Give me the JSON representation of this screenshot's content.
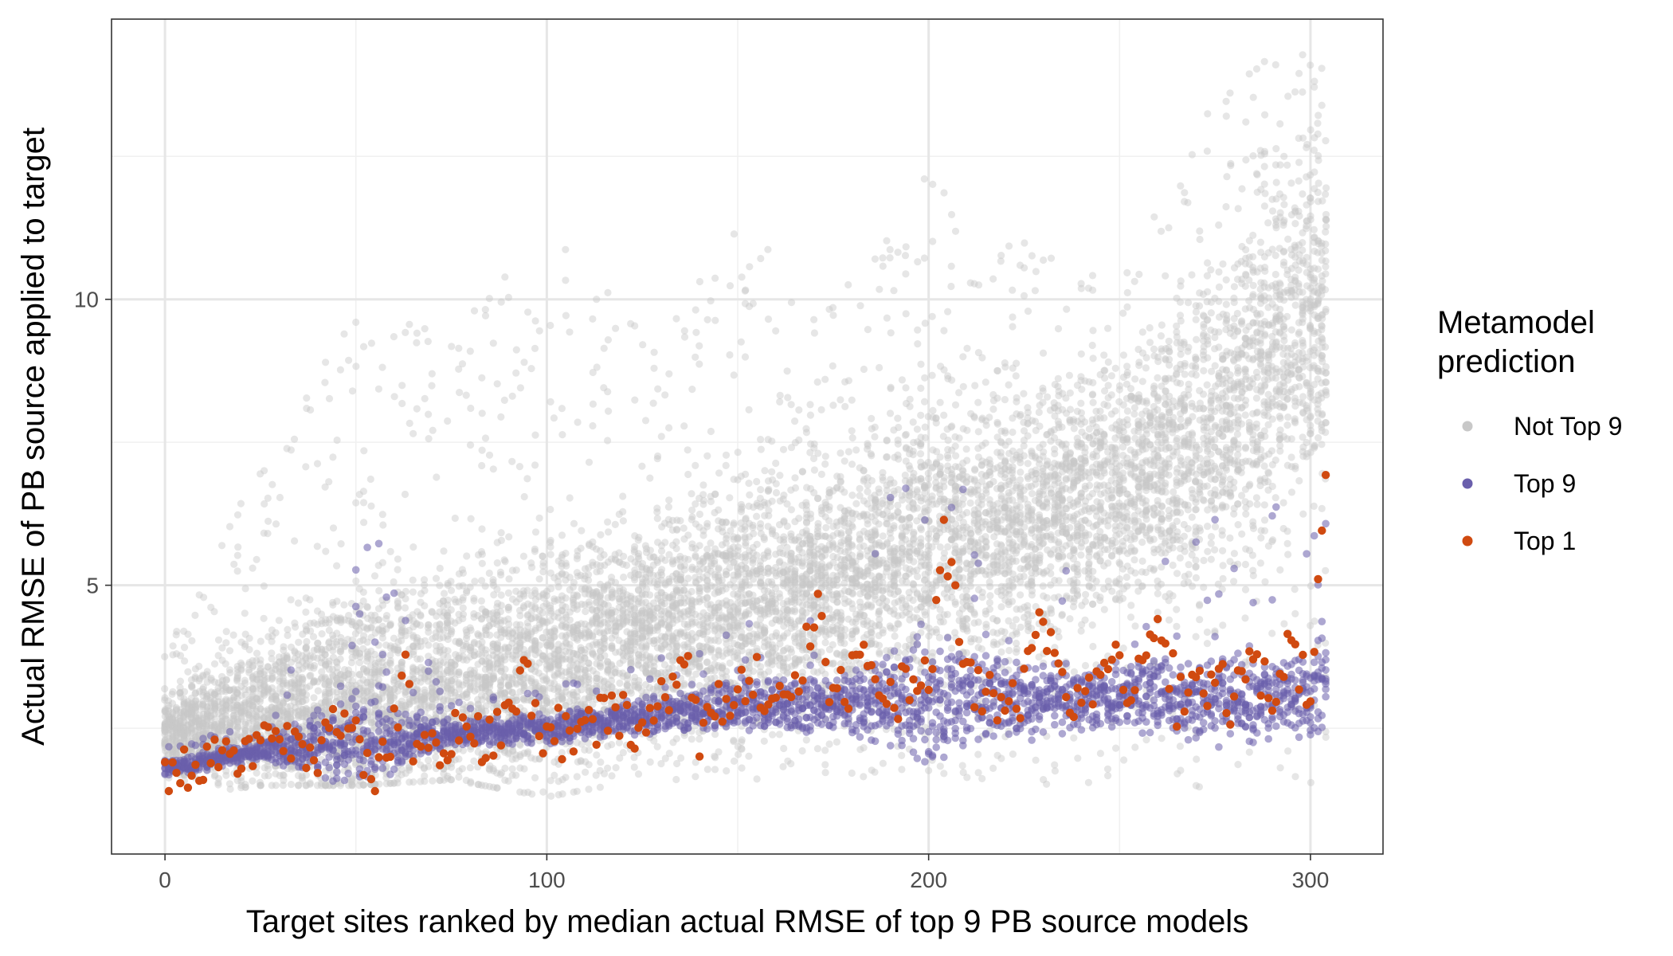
{
  "chart_data": {
    "type": "scatter",
    "title": "",
    "xlabel": "Target sites ranked by median actual RMSE of top 9 PB source models",
    "ylabel": "Actual RMSE of PB source applied to target",
    "xlim": [
      -14,
      319
    ],
    "ylim": [
      0.3,
      14.9
    ],
    "x_ticks": [
      0,
      100,
      200,
      300
    ],
    "x_tick_labels": [
      "0",
      "100",
      "200",
      "300"
    ],
    "y_ticks": [
      5,
      10
    ],
    "y_tick_labels": [
      "5",
      "10"
    ],
    "grid": true,
    "legend_position": "right",
    "legend": {
      "title_lines": [
        "Metamodel",
        "prediction"
      ],
      "entries": [
        {
          "label": "Not Top 9",
          "color": "#c8c8c8"
        },
        {
          "label": "Top 9",
          "color": "#6a5fac"
        },
        {
          "label": "Top 1",
          "color": "#d04a10"
        }
      ]
    },
    "n_sites": 305,
    "series": [
      {
        "name": "Not Top 9",
        "color": "#c8c8c8",
        "summary_by_site": {
          "x": [
            0,
            25,
            50,
            75,
            100,
            125,
            150,
            175,
            200,
            225,
            250,
            275,
            300,
            304
          ],
          "median_y": [
            2.4,
            2.8,
            3.0,
            3.3,
            3.7,
            4.1,
            4.6,
            5.1,
            5.8,
            6.1,
            6.7,
            7.7,
            9.8,
            10.0
          ],
          "max_y": [
            3.8,
            7.1,
            9.8,
            9.6,
            11.2,
            9.6,
            11.3,
            10.0,
            12.4,
            11.0,
            10.2,
            14.1,
            14.3,
            14.0
          ],
          "min_y": [
            1.3,
            1.5,
            1.5,
            1.6,
            1.3,
            1.6,
            1.6,
            1.6,
            1.6,
            1.5,
            1.4,
            1.4,
            1.4,
            1.6
          ]
        }
      },
      {
        "name": "Top 9",
        "color": "#6a5fac",
        "summary_by_site": {
          "x": [
            0,
            25,
            50,
            75,
            100,
            125,
            150,
            175,
            200,
            225,
            250,
            275,
            300,
            304
          ],
          "median_y": [
            1.8,
            2.1,
            2.3,
            2.4,
            2.5,
            2.7,
            2.9,
            2.9,
            3.0,
            3.0,
            3.1,
            3.0,
            3.1,
            3.3
          ],
          "max_y": [
            2.2,
            2.6,
            6.7,
            3.0,
            3.2,
            3.6,
            4.4,
            4.8,
            8.2,
            5.9,
            5.5,
            6.4,
            6.5,
            6.8
          ],
          "min_y": [
            1.3,
            1.5,
            1.6,
            1.6,
            1.6,
            1.7,
            1.7,
            1.8,
            1.7,
            1.7,
            1.7,
            1.6,
            1.6,
            1.6
          ]
        }
      },
      {
        "name": "Top 1",
        "color": "#d04a10",
        "x": [
          0,
          5,
          10,
          15,
          20,
          25,
          30,
          35,
          40,
          44,
          50,
          55,
          60,
          63,
          65,
          70,
          72,
          75,
          80,
          85,
          90,
          95,
          99,
          100,
          105,
          110,
          115,
          120,
          125,
          130,
          136,
          140,
          145,
          150,
          155,
          160,
          165,
          171,
          175,
          180,
          185,
          190,
          195,
          200,
          204,
          210,
          215,
          220,
          225,
          230,
          235,
          240,
          245,
          250,
          255,
          260,
          265,
          270,
          275,
          280,
          285,
          290,
          295,
          300,
          303
        ],
        "y": [
          1.6,
          1.8,
          1.8,
          2.1,
          2.0,
          2.2,
          2.1,
          2.2,
          2.0,
          2.8,
          2.3,
          1.5,
          2.5,
          3.5,
          2.3,
          2.4,
          1.8,
          2.4,
          2.3,
          2.4,
          2.5,
          3.6,
          1.6,
          2.7,
          2.3,
          2.4,
          2.6,
          2.6,
          2.5,
          2.9,
          4.1,
          2.5,
          2.9,
          3.0,
          3.3,
          3.2,
          3.0,
          4.7,
          2.9,
          3.4,
          3.6,
          3.1,
          3.3,
          3.4,
          5.9,
          3.5,
          3.1,
          3.0,
          3.2,
          4.5,
          3.1,
          3.3,
          3.5,
          3.5,
          3.2,
          4.7,
          3.0,
          3.4,
          3.2,
          3.0,
          3.9,
          3.1,
          4.0,
          2.8,
          6.4
        ]
      }
    ]
  }
}
